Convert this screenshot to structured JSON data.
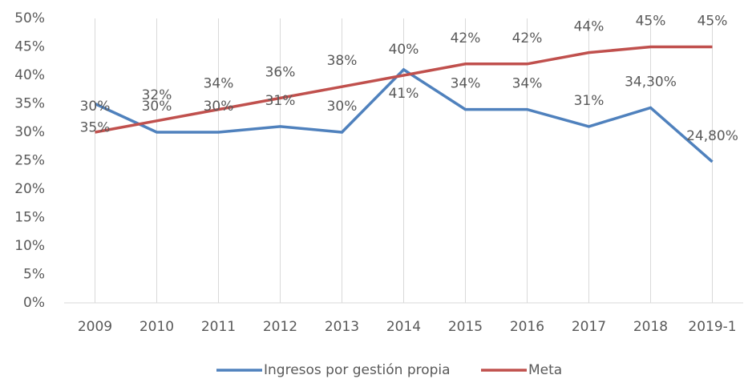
{
  "chart_data": {
    "type": "line",
    "categories": [
      "2009",
      "2010",
      "2011",
      "2012",
      "2013",
      "2014",
      "2015",
      "2016",
      "2017",
      "2018",
      "2019-1"
    ],
    "series": [
      {
        "name": "Ingresos por gestión propia",
        "color": "#4f81bd",
        "values": [
          35,
          30,
          30,
          31,
          30,
          41,
          34,
          34,
          31,
          34.3,
          24.8
        ],
        "value_labels": [
          "35%",
          "30%",
          "30%",
          "31%",
          "30%",
          "41%",
          "34%",
          "34%",
          "31%",
          "34,30%",
          "24,80%"
        ]
      },
      {
        "name": "Meta",
        "color": "#c0504d",
        "values": [
          30,
          32,
          34,
          36,
          38,
          40,
          42,
          42,
          44,
          45,
          45
        ],
        "value_labels": [
          "30%",
          "32%",
          "34%",
          "36%",
          "38%",
          "40%",
          "42%",
          "42%",
          "44%",
          "45%",
          "45%"
        ]
      }
    ],
    "ylim": [
      0,
      50
    ],
    "yticks": [
      {
        "value": 0,
        "label": "0%"
      },
      {
        "value": 5,
        "label": "5%"
      },
      {
        "value": 10,
        "label": "10%"
      },
      {
        "value": 15,
        "label": "15%"
      },
      {
        "value": 20,
        "label": "20%"
      },
      {
        "value": 25,
        "label": "25%"
      },
      {
        "value": 30,
        "label": "30%"
      },
      {
        "value": 35,
        "label": "35%"
      },
      {
        "value": 40,
        "label": "40%"
      },
      {
        "value": 45,
        "label": "45%"
      },
      {
        "value": 50,
        "label": "50%"
      }
    ],
    "grid": true,
    "legend": "bottom"
  }
}
